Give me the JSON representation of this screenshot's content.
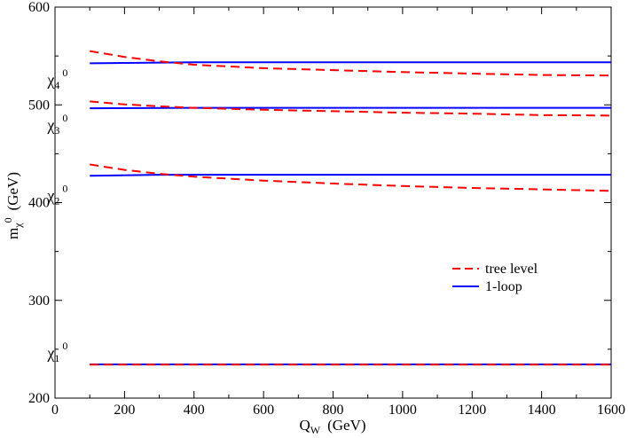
{
  "chart_data": {
    "type": "line",
    "xlabel": {
      "main": "Q",
      "sub": "W",
      "unit": "(GeV)"
    },
    "ylabel": {
      "main": "m",
      "sub": "χ",
      "sup": "0",
      "unit": "(GeV)"
    },
    "xlim": [
      0,
      1600
    ],
    "ylim": [
      200,
      600
    ],
    "x_ticks": [
      "0",
      "200",
      "400",
      "600",
      "800",
      "1000",
      "1200",
      "1400",
      "1600"
    ],
    "y_ticks": [
      "200",
      "300",
      "400",
      "500",
      "600"
    ],
    "legend": {
      "placement": "center-right",
      "entries": [
        {
          "label": "tree level",
          "style": "dashed",
          "color": "#ff0000"
        },
        {
          "label": "1-loop",
          "style": "solid",
          "color": "#0000ff"
        }
      ]
    },
    "annotations": [
      {
        "main": "χ",
        "sub": "4",
        "sup": "0",
        "x": 330,
        "y": 520
      },
      {
        "main": "χ",
        "sub": "3",
        "sup": "0",
        "x": 330,
        "y": 474
      },
      {
        "main": "χ",
        "sub": "2",
        "sup": "0",
        "x": 330,
        "y": 402
      },
      {
        "main": "χ",
        "sub": "1",
        "sup": "0",
        "x": 330,
        "y": 241
      }
    ],
    "series": [
      {
        "style": "solid",
        "color": "#0000ff",
        "x": [
          100,
          400,
          800,
          1200,
          1600
        ],
        "y": [
          542.5,
          543.5,
          543.5,
          543.5,
          543.5
        ]
      },
      {
        "style": "dashed",
        "color": "#ff0000",
        "x": [
          100,
          200,
          300,
          400,
          600,
          800,
          1000,
          1200,
          1400,
          1600
        ],
        "y": [
          555,
          549,
          544.5,
          541,
          537.5,
          535.5,
          533.5,
          532,
          530.5,
          530
        ]
      },
      {
        "style": "solid",
        "color": "#0000ff",
        "x": [
          100,
          400,
          800,
          1200,
          1600
        ],
        "y": [
          496.5,
          497,
          497,
          497,
          497
        ]
      },
      {
        "style": "dashed",
        "color": "#ff0000",
        "x": [
          100,
          200,
          300,
          400,
          600,
          800,
          1000,
          1200,
          1400,
          1600
        ],
        "y": [
          503.5,
          500.5,
          498.5,
          497,
          495,
          493.5,
          492,
          491,
          489.5,
          489
        ]
      },
      {
        "style": "solid",
        "color": "#0000ff",
        "x": [
          100,
          300,
          800,
          1200,
          1600
        ],
        "y": [
          427.5,
          428.5,
          428.5,
          428.5,
          428.5
        ]
      },
      {
        "style": "dashed",
        "color": "#ff0000",
        "x": [
          100,
          200,
          300,
          400,
          600,
          800,
          1000,
          1200,
          1400,
          1600
        ],
        "y": [
          439,
          433.5,
          429.5,
          426.5,
          422.5,
          419.5,
          417,
          415,
          413.5,
          412
        ]
      },
      {
        "style": "solid",
        "color": "#0000ff",
        "x": [
          100,
          800,
          1600
        ],
        "y": [
          234.5,
          234.5,
          234.5
        ]
      },
      {
        "style": "dashed",
        "color": "#ff0000",
        "x": [
          100,
          800,
          1600
        ],
        "y": [
          234.2,
          234.2,
          234.2
        ]
      }
    ]
  }
}
